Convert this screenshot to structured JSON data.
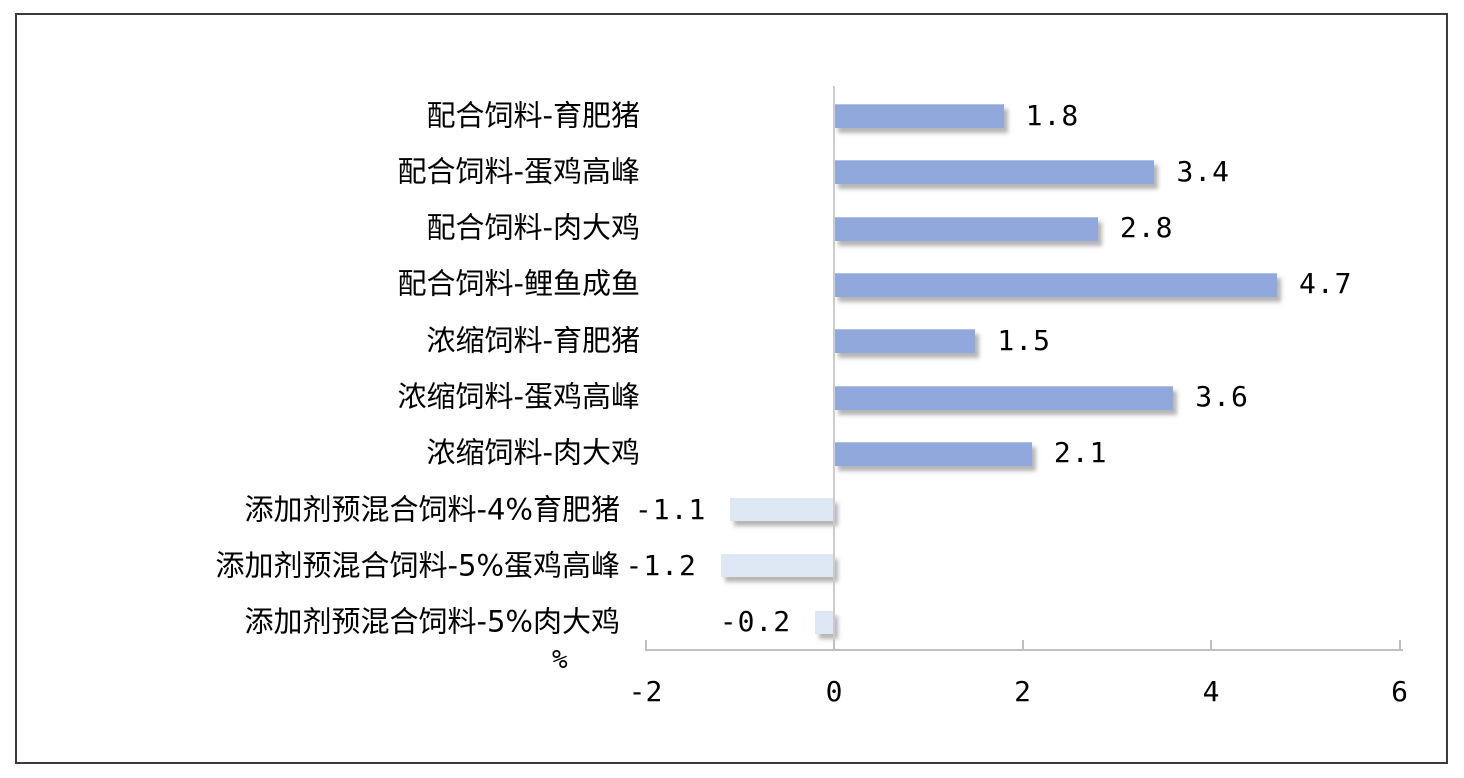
{
  "chart_data": {
    "type": "bar",
    "orientation": "horizontal",
    "title": "",
    "xlabel": "%",
    "ylabel": "",
    "categories": [
      "配合饲料-育肥猪",
      "配合饲料-蛋鸡高峰",
      "配合饲料-肉大鸡",
      "配合饲料-鲤鱼成鱼",
      "浓缩饲料-育肥猪",
      "浓缩饲料-蛋鸡高峰",
      "浓缩饲料-肉大鸡",
      "添加剂预混合饲料-4%育肥猪",
      "添加剂预混合饲料-5%蛋鸡高峰",
      "添加剂预混合饲料-5%肉大鸡"
    ],
    "values": [
      1.8,
      3.4,
      2.8,
      4.7,
      1.5,
      3.6,
      2.1,
      -1.1,
      -1.2,
      -0.2
    ],
    "data_labels": [
      "1.8",
      "3.4",
      "2.8",
      "4.7",
      "1.5",
      "3.6",
      "2.1",
      "-1.1",
      "-1.2",
      "-0.2"
    ],
    "x_ticks": [
      "-2",
      "0",
      "2",
      "4",
      "6"
    ],
    "x_tick_values": [
      -2,
      0,
      2,
      4,
      6
    ],
    "xlim": [
      -2,
      6
    ],
    "grid": "off",
    "legend": "none",
    "data_label_position": "outside-end",
    "colors": {
      "bar_positive": "#90a8db",
      "bar_negative": "#dee8f4",
      "bar_shadow": "#787878",
      "axis_line": "#bfbfbf",
      "zero_line": "#cccccc",
      "text": "#000000",
      "frame_border": "#3c3c3c",
      "background": "#ffffff"
    }
  }
}
